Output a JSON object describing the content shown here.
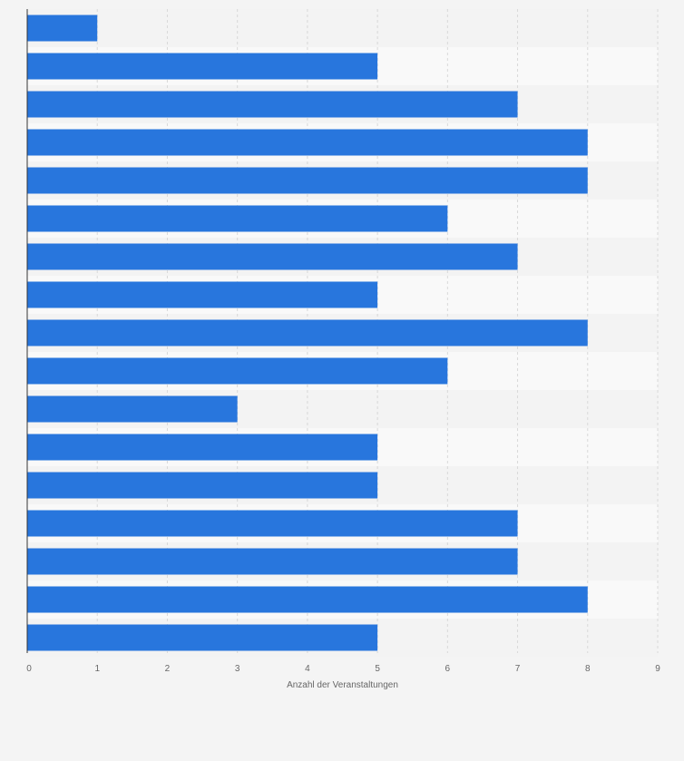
{
  "chart_data": {
    "type": "bar",
    "orientation": "horizontal",
    "categories": [
      "",
      "",
      "",
      "",
      "",
      "",
      "",
      "",
      "",
      "",
      "",
      "",
      "",
      "",
      "",
      "",
      ""
    ],
    "values": [
      1,
      5,
      7,
      8,
      8,
      6,
      7,
      5,
      8,
      6,
      3,
      5,
      5,
      7,
      7,
      8,
      5
    ],
    "xlabel": "Anzahl der Veranstaltungen",
    "ylabel": "",
    "xlim": [
      0,
      9
    ],
    "x_ticks": [
      "0",
      "1",
      "2",
      "3",
      "4",
      "5",
      "6",
      "7",
      "8",
      "9"
    ],
    "grid": true,
    "legend": "none",
    "colors": {
      "bar": "#2876dd",
      "band_light": "#f9f9f9",
      "band_dark": "#f3f3f3",
      "background": "#f4f4f4",
      "gridline": "#d8d8d8",
      "axis": "#333333",
      "text": "#666666"
    }
  }
}
